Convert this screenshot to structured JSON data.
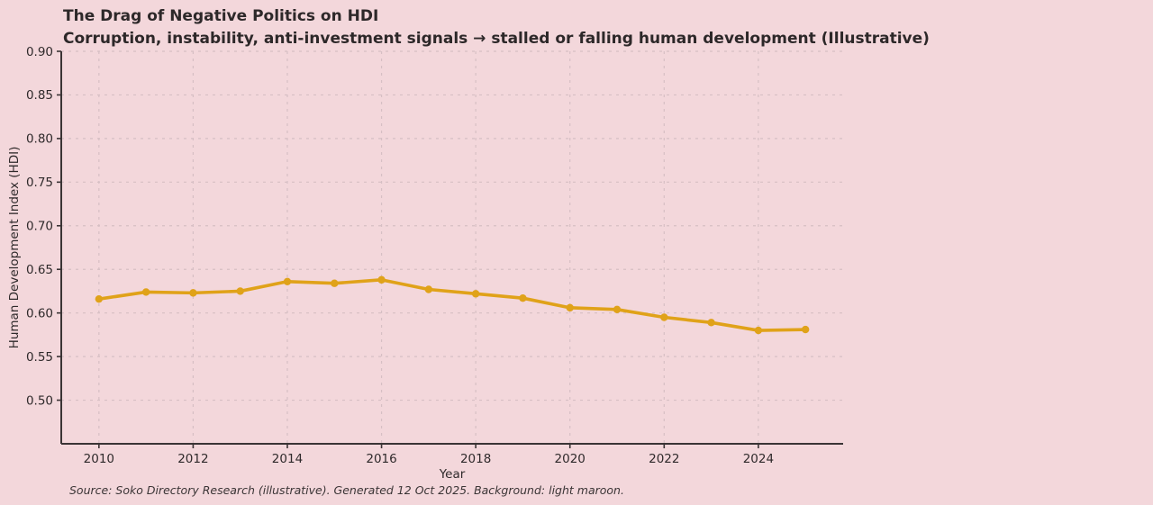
{
  "figure": {
    "background_color": "#f3d7db"
  },
  "chart_data": {
    "type": "line",
    "title": "The Drag of Negative Politics on HDI",
    "subtitle": "Corruption, instability, anti-investment signals → stalled or falling human development (Illustrative)",
    "xlabel": "Year",
    "ylabel": "Human Development Index (HDI)",
    "source_note": "Source: Soko Directory Research (illustrative). Generated 12 Oct 2025. Background: light maroon.",
    "x": [
      2010,
      2011,
      2012,
      2013,
      2014,
      2015,
      2016,
      2017,
      2018,
      2019,
      2020,
      2021,
      2022,
      2023,
      2024,
      2025
    ],
    "series": [
      {
        "name": "HDI",
        "color": "#e0a219",
        "values": [
          0.616,
          0.624,
          0.623,
          0.625,
          0.636,
          0.634,
          0.638,
          0.627,
          0.622,
          0.617,
          0.606,
          0.604,
          0.595,
          0.589,
          0.58,
          0.581
        ]
      }
    ],
    "xlim": [
      2009.2,
      2025.8
    ],
    "ylim": [
      0.45,
      0.9
    ],
    "x_ticks": [
      {
        "value": 2010,
        "label": "2010"
      },
      {
        "value": 2012,
        "label": "2012"
      },
      {
        "value": 2014,
        "label": "2014"
      },
      {
        "value": 2016,
        "label": "2016"
      },
      {
        "value": 2018,
        "label": "2018"
      },
      {
        "value": 2020,
        "label": "2020"
      },
      {
        "value": 2022,
        "label": "2022"
      },
      {
        "value": 2024,
        "label": "2024"
      }
    ],
    "y_ticks": [
      {
        "value": 0.5,
        "label": "0.50"
      },
      {
        "value": 0.55,
        "label": "0.55"
      },
      {
        "value": 0.6,
        "label": "0.60"
      },
      {
        "value": 0.65,
        "label": "0.65"
      },
      {
        "value": 0.7,
        "label": "0.70"
      },
      {
        "value": 0.75,
        "label": "0.75"
      },
      {
        "value": 0.8,
        "label": "0.80"
      },
      {
        "value": 0.85,
        "label": "0.85"
      },
      {
        "value": 0.9,
        "label": "0.90"
      }
    ],
    "grid": true,
    "grid_style": "dashed",
    "legend": "none",
    "colors": {
      "line": "#e0a219",
      "grid": "#d6bfc4",
      "axis": "#3a3435",
      "text": "#2f2a2b",
      "background": "#f3d7db"
    }
  }
}
